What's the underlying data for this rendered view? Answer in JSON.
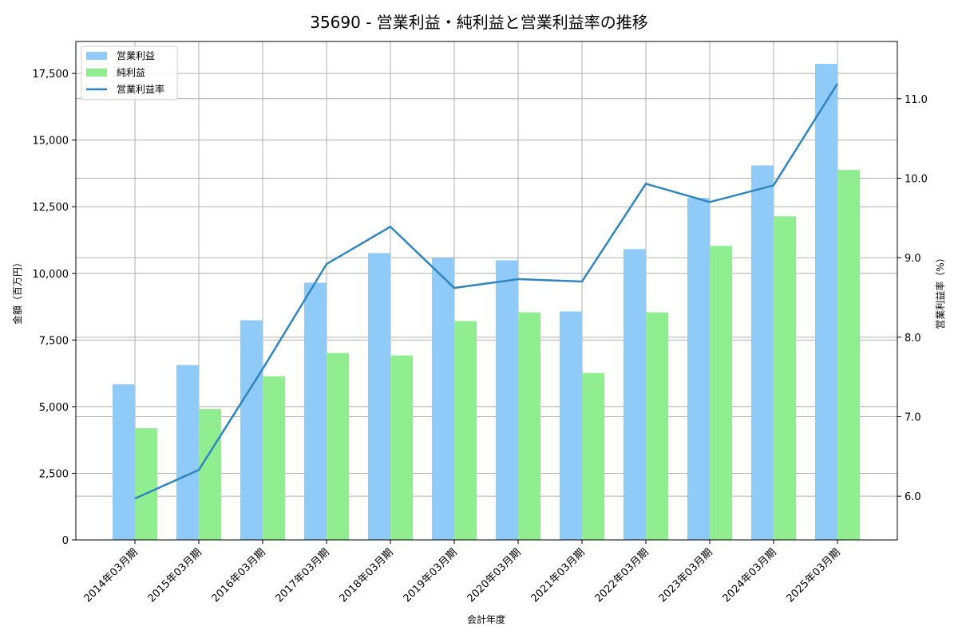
{
  "chart_data": {
    "type": "bar",
    "title": "35690 - 営業利益・純利益と営業利益率の推移",
    "xlabel": "会計年度",
    "ylabel": "金額（百万円）",
    "y2label": "営業利益率（%）",
    "categories": [
      "2014年03月期",
      "2015年03月期",
      "2016年03月期",
      "2017年03月期",
      "2018年03月期",
      "2019年03月期",
      "2020年03月期",
      "2021年03月期",
      "2022年03月期",
      "2023年03月期",
      "2024年03月期",
      "2025年03月期"
    ],
    "series": [
      {
        "name": "営業利益",
        "type": "bar",
        "axis": "left",
        "color": "#90CAF9",
        "values": [
          5840,
          6560,
          8240,
          9650,
          10760,
          10580,
          10490,
          8570,
          10910,
          12830,
          14050,
          17860
        ]
      },
      {
        "name": "純利益",
        "type": "bar",
        "axis": "left",
        "color": "#90EE90",
        "values": [
          4190,
          4910,
          6140,
          7010,
          6920,
          8210,
          8540,
          6260,
          8540,
          11030,
          12140,
          13880
        ]
      },
      {
        "name": "営業利益率",
        "type": "line",
        "axis": "right",
        "color": "#2E86C1",
        "values": [
          5.97,
          6.33,
          7.6,
          8.92,
          9.39,
          8.62,
          8.73,
          8.7,
          9.93,
          9.7,
          9.91,
          11.19
        ]
      }
    ],
    "ylim": [
      0,
      18700
    ],
    "y_ticks": [
      0,
      2500,
      5000,
      7500,
      10000,
      12500,
      15000,
      17500
    ],
    "y_tick_labels": [
      "0",
      "2,500",
      "5,000",
      "7,500",
      "10,000",
      "12,500",
      "15,000",
      "17,500"
    ],
    "y2lim": [
      5.45,
      11.72
    ],
    "y2_ticks": [
      6.0,
      7.0,
      8.0,
      9.0,
      10.0,
      11.0
    ],
    "y2_tick_labels": [
      "6.0",
      "7.0",
      "8.0",
      "9.0",
      "10.0",
      "11.0"
    ],
    "grid": true,
    "legend_position": "upper left"
  }
}
